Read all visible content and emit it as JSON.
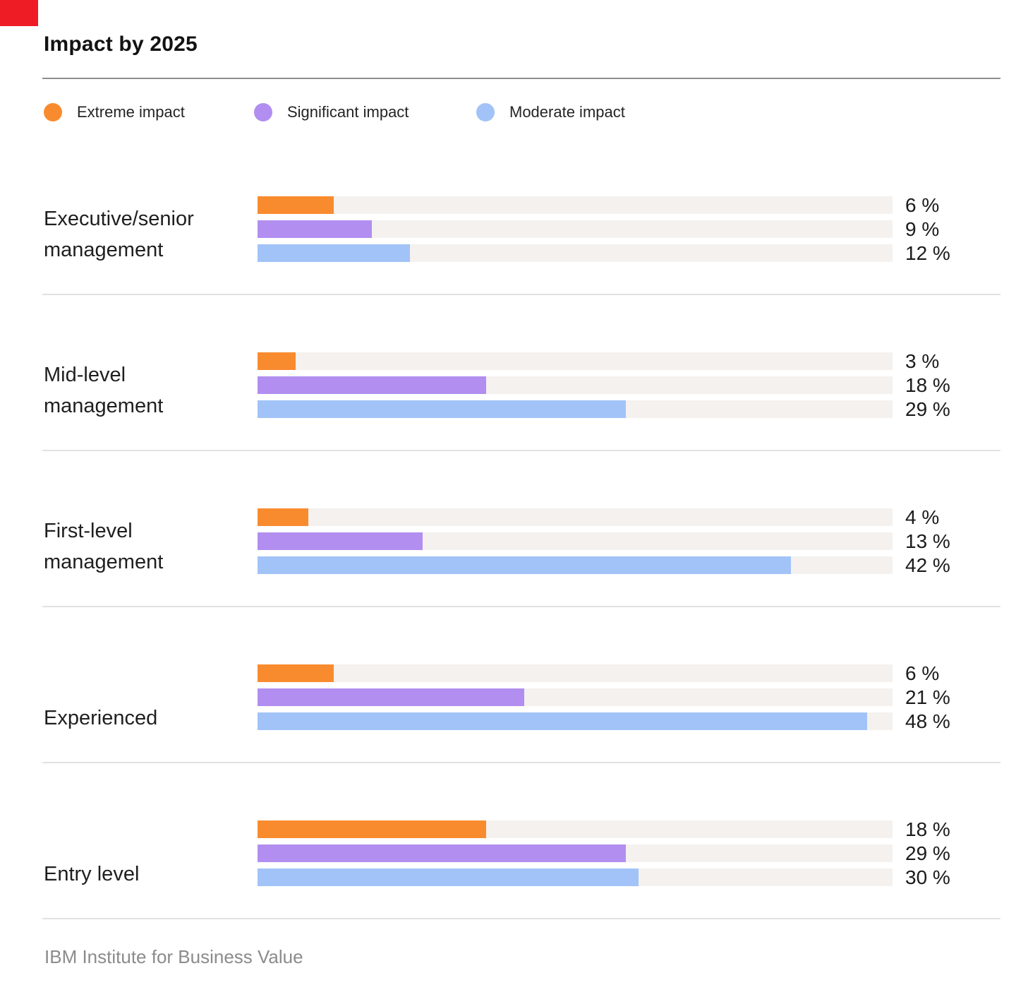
{
  "title": "Impact by 2025",
  "footer": "IBM Institute for Business Value",
  "colors": {
    "extreme": "#f98b2f",
    "significant": "#b28ef0",
    "moderate": "#a1c3f7",
    "track": "#f4f1ef",
    "corner_marker": "#ee1c25"
  },
  "legend": [
    {
      "label": "Extreme impact",
      "color": "#f98b2f"
    },
    {
      "label": "Significant impact",
      "color": "#b28ef0"
    },
    {
      "label": "Moderate impact",
      "color": "#a1c3f7"
    }
  ],
  "chart_data": {
    "type": "bar",
    "orientation": "horizontal",
    "title": "Impact by 2025",
    "categories": [
      "Executive/senior management",
      "Mid-level management",
      "First-level management",
      "Experienced",
      "Entry level"
    ],
    "series": [
      {
        "name": "Extreme impact",
        "color": "#f98b2f",
        "values": [
          6,
          3,
          4,
          6,
          18
        ]
      },
      {
        "name": "Significant impact",
        "color": "#b28ef0",
        "values": [
          9,
          18,
          13,
          21,
          29
        ]
      },
      {
        "name": "Moderate impact",
        "color": "#a1c3f7",
        "values": [
          12,
          29,
          42,
          48,
          30
        ]
      }
    ],
    "xlim": [
      0,
      50
    ],
    "value_suffix": " %",
    "grid": false,
    "legend_position": "top",
    "source": "IBM Institute for Business Value"
  },
  "groups": [
    {
      "label_lines": [
        "Executive/senior",
        "management"
      ],
      "rows": [
        {
          "display": "6 %"
        },
        {
          "display": "9 %"
        },
        {
          "display": "12 %"
        }
      ]
    },
    {
      "label_lines": [
        "Mid-level",
        "management"
      ],
      "rows": [
        {
          "display": "3 %"
        },
        {
          "display": "18 %"
        },
        {
          "display": "29 %"
        }
      ]
    },
    {
      "label_lines": [
        "First-level",
        "management"
      ],
      "rows": [
        {
          "display": "4 %"
        },
        {
          "display": "13 %"
        },
        {
          "display": "42 %"
        }
      ]
    },
    {
      "label_lines": [
        "Experienced"
      ],
      "rows": [
        {
          "display": "6 %"
        },
        {
          "display": "21 %"
        },
        {
          "display": "48 %"
        }
      ]
    },
    {
      "label_lines": [
        "Entry level"
      ],
      "rows": [
        {
          "display": "18 %"
        },
        {
          "display": "29 %"
        },
        {
          "display": "30 %"
        }
      ]
    }
  ]
}
